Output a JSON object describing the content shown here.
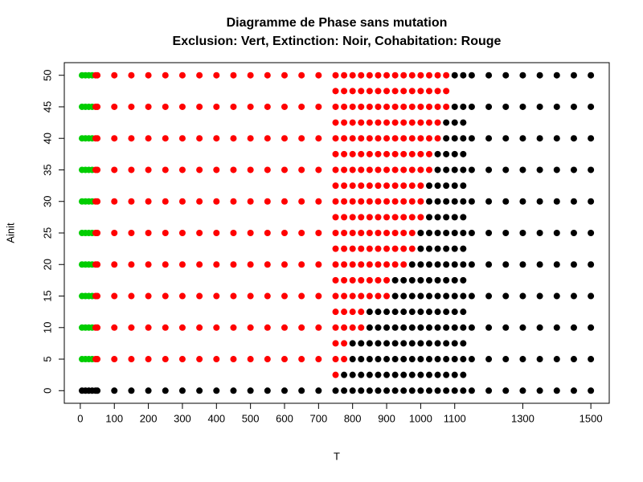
{
  "chart_data": {
    "type": "scatter",
    "title": "Diagramme de Phase sans mutation",
    "subtitle": "Exclusion: Vert, Extinction: Noir, Cohabitation: Rouge",
    "x_label": "T",
    "y_label": "Ainit",
    "xlim": [
      -47,
      1554
    ],
    "ylim": [
      -2,
      52
    ],
    "xticks": [
      0,
      100,
      200,
      300,
      400,
      500,
      600,
      700,
      800,
      900,
      1000,
      1100,
      1300,
      1500
    ],
    "yticks": [
      0,
      5,
      10,
      15,
      20,
      25,
      30,
      35,
      40,
      45,
      50
    ],
    "colors": {
      "green": "#00cd00",
      "red": "#ff0000",
      "black": "#000000"
    },
    "rows": [
      {
        "y": 50,
        "green": [
          5,
          15,
          25,
          35
        ],
        "red": [
          45,
          50,
          100,
          150,
          200,
          250,
          300,
          350,
          400,
          450,
          500,
          550,
          600,
          650,
          700,
          750,
          775,
          800,
          825,
          850,
          875,
          900,
          925,
          950,
          975,
          1000,
          1025,
          1050,
          1075
        ],
        "black": [
          1100,
          1125,
          1150,
          1200,
          1250,
          1300,
          1350,
          1400,
          1450,
          1500
        ]
      },
      {
        "y": 47.5,
        "red": [
          750,
          775,
          800,
          825,
          850,
          875,
          900,
          925,
          950,
          975,
          1000,
          1025,
          1050,
          1075
        ]
      },
      {
        "y": 45,
        "green": [
          5,
          15,
          25,
          35
        ],
        "red": [
          45,
          50,
          100,
          150,
          200,
          250,
          300,
          350,
          400,
          450,
          500,
          550,
          600,
          650,
          700,
          750,
          775,
          800,
          825,
          850,
          875,
          900,
          925,
          950,
          975,
          1000,
          1025,
          1050,
          1075
        ],
        "black": [
          1100,
          1125,
          1150,
          1200,
          1250,
          1300,
          1350,
          1400,
          1450,
          1500
        ]
      },
      {
        "y": 42.5,
        "red": [
          750,
          775,
          800,
          825,
          850,
          875,
          900,
          925,
          950,
          975,
          1000,
          1025,
          1050
        ],
        "black": [
          1075,
          1100,
          1125
        ]
      },
      {
        "y": 40,
        "green": [
          5,
          15,
          25,
          35
        ],
        "red": [
          45,
          50,
          100,
          150,
          200,
          250,
          300,
          350,
          400,
          450,
          500,
          550,
          600,
          650,
          700,
          750,
          775,
          800,
          825,
          850,
          875,
          900,
          925,
          950,
          975,
          1000,
          1025,
          1050
        ],
        "black": [
          1075,
          1100,
          1125,
          1150,
          1200,
          1250,
          1300,
          1350,
          1400,
          1450,
          1500
        ]
      },
      {
        "y": 37.5,
        "red": [
          750,
          775,
          800,
          825,
          850,
          875,
          900,
          925,
          950,
          975,
          1000,
          1025
        ],
        "black": [
          1050,
          1075,
          1100,
          1125
        ]
      },
      {
        "y": 35,
        "green": [
          5,
          15,
          25,
          35
        ],
        "red": [
          45,
          50,
          100,
          150,
          200,
          250,
          300,
          350,
          400,
          450,
          500,
          550,
          600,
          650,
          700,
          750,
          775,
          800,
          825,
          850,
          875,
          900,
          925,
          950,
          975,
          1000,
          1025
        ],
        "black": [
          1050,
          1075,
          1100,
          1125,
          1150,
          1200,
          1250,
          1300,
          1350,
          1400,
          1450,
          1500
        ]
      },
      {
        "y": 32.5,
        "red": [
          750,
          775,
          800,
          825,
          850,
          875,
          900,
          925,
          950,
          975,
          1000
        ],
        "black": [
          1025,
          1050,
          1075,
          1100,
          1125
        ]
      },
      {
        "y": 30,
        "green": [
          5,
          15,
          25,
          35
        ],
        "red": [
          45,
          50,
          100,
          150,
          200,
          250,
          300,
          350,
          400,
          450,
          500,
          550,
          600,
          650,
          700,
          750,
          775,
          800,
          825,
          850,
          875,
          900,
          925,
          950,
          975,
          1000
        ],
        "black": [
          1025,
          1050,
          1075,
          1100,
          1125,
          1150,
          1200,
          1250,
          1300,
          1350,
          1400,
          1450,
          1500
        ]
      },
      {
        "y": 27.5,
        "red": [
          750,
          775,
          800,
          825,
          850,
          875,
          900,
          925,
          950,
          975,
          1000
        ],
        "black": [
          1025,
          1050,
          1075,
          1100,
          1125
        ]
      },
      {
        "y": 25,
        "green": [
          5,
          15,
          25,
          35
        ],
        "red": [
          45,
          50,
          100,
          150,
          200,
          250,
          300,
          350,
          400,
          450,
          500,
          550,
          600,
          650,
          700,
          750,
          775,
          800,
          825,
          850,
          875,
          900,
          925,
          950,
          975
        ],
        "black": [
          1000,
          1025,
          1050,
          1075,
          1100,
          1125,
          1150,
          1200,
          1250,
          1300,
          1350,
          1400,
          1450,
          1500
        ]
      },
      {
        "y": 22.5,
        "red": [
          750,
          775,
          800,
          825,
          850,
          875,
          900,
          925,
          950,
          975
        ],
        "black": [
          1000,
          1025,
          1050,
          1075,
          1100,
          1125
        ]
      },
      {
        "y": 20,
        "green": [
          5,
          15,
          25,
          35
        ],
        "red": [
          45,
          50,
          100,
          150,
          200,
          250,
          300,
          350,
          400,
          450,
          500,
          550,
          600,
          650,
          700,
          750,
          775,
          800,
          825,
          850,
          875,
          900,
          925,
          950
        ],
        "black": [
          975,
          1000,
          1025,
          1050,
          1075,
          1100,
          1125,
          1150,
          1200,
          1250,
          1300,
          1350,
          1400,
          1450,
          1500
        ]
      },
      {
        "y": 17.5,
        "red": [
          750,
          775,
          800,
          825,
          850,
          875,
          900
        ],
        "black": [
          925,
          950,
          975,
          1000,
          1025,
          1050,
          1075,
          1100,
          1125
        ]
      },
      {
        "y": 15,
        "green": [
          5,
          15,
          25,
          35
        ],
        "red": [
          45,
          50,
          100,
          150,
          200,
          250,
          300,
          350,
          400,
          450,
          500,
          550,
          600,
          650,
          700,
          750,
          775,
          800,
          825,
          850,
          875,
          900
        ],
        "black": [
          925,
          950,
          975,
          1000,
          1025,
          1050,
          1075,
          1100,
          1125,
          1150,
          1200,
          1250,
          1300,
          1350,
          1400,
          1450,
          1500
        ]
      },
      {
        "y": 12.5,
        "red": [
          750,
          775,
          800,
          825
        ],
        "black": [
          850,
          875,
          900,
          925,
          950,
          975,
          1000,
          1025,
          1050,
          1075,
          1100,
          1125
        ]
      },
      {
        "y": 10,
        "green": [
          5,
          15,
          25,
          35
        ],
        "red": [
          45,
          50,
          100,
          150,
          200,
          250,
          300,
          350,
          400,
          450,
          500,
          550,
          600,
          650,
          700,
          750,
          775,
          800,
          825
        ],
        "black": [
          850,
          875,
          900,
          925,
          950,
          975,
          1000,
          1025,
          1050,
          1075,
          1100,
          1125,
          1150,
          1200,
          1250,
          1300,
          1350,
          1400,
          1450,
          1500
        ]
      },
      {
        "y": 7.5,
        "red": [
          750,
          775
        ],
        "black": [
          800,
          825,
          850,
          875,
          900,
          925,
          950,
          975,
          1000,
          1025,
          1050,
          1075,
          1100,
          1125
        ]
      },
      {
        "y": 5,
        "green": [
          5,
          15,
          25,
          35
        ],
        "red": [
          45,
          50,
          100,
          150,
          200,
          250,
          300,
          350,
          400,
          450,
          500,
          550,
          600,
          650,
          700,
          750,
          775
        ],
        "black": [
          800,
          825,
          850,
          875,
          900,
          925,
          950,
          975,
          1000,
          1025,
          1050,
          1075,
          1100,
          1125,
          1150,
          1200,
          1250,
          1300,
          1350,
          1400,
          1450,
          1500
        ]
      },
      {
        "y": 2.5,
        "red": [
          750
        ],
        "black": [
          775,
          800,
          825,
          850,
          875,
          900,
          925,
          950,
          975,
          1000,
          1025,
          1050,
          1075,
          1100,
          1125
        ]
      },
      {
        "y": 0,
        "black": [
          5,
          15,
          25,
          35,
          45,
          50,
          100,
          150,
          200,
          250,
          300,
          350,
          400,
          450,
          500,
          550,
          600,
          650,
          700,
          750,
          775,
          800,
          825,
          850,
          875,
          900,
          925,
          950,
          975,
          1000,
          1025,
          1050,
          1075,
          1100,
          1125,
          1150,
          1200,
          1250,
          1300,
          1350,
          1400,
          1450,
          1500
        ]
      }
    ]
  }
}
